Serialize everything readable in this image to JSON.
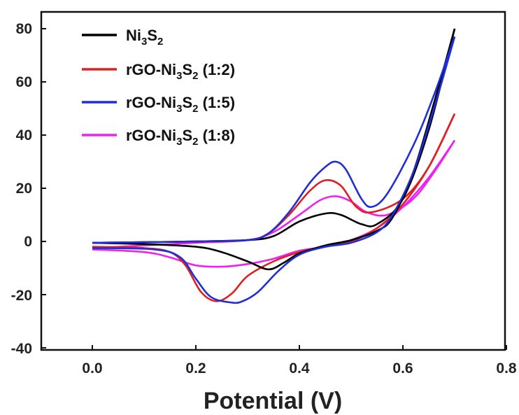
{
  "chart_data": {
    "type": "line",
    "title": "",
    "xlabel": "Potential (V)",
    "ylabel": "",
    "xlim": [
      -0.1,
      0.8
    ],
    "ylim": [
      -40,
      85
    ],
    "x_ticks": [
      "0.0",
      "0.2",
      "0.4",
      "0.6",
      "0.8"
    ],
    "y_ticks": [
      "-40",
      "-20",
      "0",
      "20",
      "40",
      "60",
      "80"
    ],
    "grid": false,
    "legend_position": "top-left",
    "series": [
      {
        "name": "Ni3S2",
        "legend": {
          "base": "Ni",
          "sub1": "3",
          "mid": "S",
          "sub2": "2",
          "tail": ""
        },
        "color": "#000000",
        "anodic": [
          [
            0.0,
            -0.5
          ],
          [
            0.1,
            -0.3
          ],
          [
            0.2,
            0.0
          ],
          [
            0.3,
            0.5
          ],
          [
            0.35,
            2.0
          ],
          [
            0.4,
            7.5
          ],
          [
            0.45,
            10.5
          ],
          [
            0.48,
            10.0
          ],
          [
            0.52,
            6.5
          ],
          [
            0.55,
            6.5
          ],
          [
            0.6,
            16.0
          ],
          [
            0.65,
            42.0
          ],
          [
            0.7,
            80.0
          ]
        ],
        "cathodic": [
          [
            0.7,
            80.0
          ],
          [
            0.66,
            52.0
          ],
          [
            0.62,
            26.0
          ],
          [
            0.58,
            9.0
          ],
          [
            0.55,
            4.0
          ],
          [
            0.5,
            0.5
          ],
          [
            0.45,
            -1.5
          ],
          [
            0.4,
            -4.5
          ],
          [
            0.37,
            -8.0
          ],
          [
            0.34,
            -10.5
          ],
          [
            0.3,
            -7.5
          ],
          [
            0.25,
            -4.0
          ],
          [
            0.2,
            -2.0
          ],
          [
            0.1,
            -1.0
          ],
          [
            0.0,
            -0.5
          ]
        ]
      },
      {
        "name": "rGO-Ni3S2 (1:2)",
        "legend": {
          "base": "rGO-Ni",
          "sub1": "3",
          "mid": "S",
          "sub2": "2",
          "tail": " (1:2)"
        },
        "color": "#e02020",
        "anodic": [
          [
            0.0,
            -0.5
          ],
          [
            0.1,
            -0.3
          ],
          [
            0.2,
            0.0
          ],
          [
            0.3,
            0.5
          ],
          [
            0.34,
            3.0
          ],
          [
            0.38,
            10.0
          ],
          [
            0.42,
            19.0
          ],
          [
            0.45,
            23.0
          ],
          [
            0.48,
            21.0
          ],
          [
            0.51,
            13.0
          ],
          [
            0.54,
            11.0
          ],
          [
            0.6,
            16.0
          ],
          [
            0.65,
            28.0
          ],
          [
            0.7,
            48.0
          ]
        ],
        "cathodic": [
          [
            0.7,
            48.0
          ],
          [
            0.65,
            28.0
          ],
          [
            0.6,
            14.0
          ],
          [
            0.55,
            5.0
          ],
          [
            0.5,
            0.0
          ],
          [
            0.45,
            -2.0
          ],
          [
            0.4,
            -4.0
          ],
          [
            0.35,
            -7.5
          ],
          [
            0.3,
            -13.0
          ],
          [
            0.27,
            -19.5
          ],
          [
            0.24,
            -22.5
          ],
          [
            0.21,
            -19.0
          ],
          [
            0.18,
            -9.0
          ],
          [
            0.15,
            -4.0
          ],
          [
            0.1,
            -2.5
          ],
          [
            0.0,
            -2.0
          ]
        ]
      },
      {
        "name": "rGO-Ni3S2 (1:5)",
        "legend": {
          "base": "rGO-Ni",
          "sub1": "3",
          "mid": "S",
          "sub2": "2",
          "tail": " (1:5)"
        },
        "color": "#1f2fd6",
        "anodic": [
          [
            0.0,
            -0.5
          ],
          [
            0.1,
            -0.3
          ],
          [
            0.2,
            0.0
          ],
          [
            0.3,
            0.5
          ],
          [
            0.34,
            3.0
          ],
          [
            0.38,
            11.0
          ],
          [
            0.42,
            22.0
          ],
          [
            0.45,
            28.0
          ],
          [
            0.47,
            30.0
          ],
          [
            0.49,
            27.0
          ],
          [
            0.52,
            16.0
          ],
          [
            0.54,
            13.0
          ],
          [
            0.57,
            18.0
          ],
          [
            0.62,
            36.0
          ],
          [
            0.66,
            55.0
          ],
          [
            0.7,
            77.0
          ]
        ],
        "cathodic": [
          [
            0.7,
            77.0
          ],
          [
            0.66,
            50.0
          ],
          [
            0.62,
            26.0
          ],
          [
            0.58,
            10.0
          ],
          [
            0.55,
            3.5
          ],
          [
            0.5,
            -0.5
          ],
          [
            0.45,
            -2.0
          ],
          [
            0.4,
            -5.0
          ],
          [
            0.36,
            -11.0
          ],
          [
            0.32,
            -19.0
          ],
          [
            0.29,
            -22.5
          ],
          [
            0.27,
            -23.0
          ],
          [
            0.23,
            -21.0
          ],
          [
            0.2,
            -14.0
          ],
          [
            0.17,
            -6.0
          ],
          [
            0.12,
            -3.0
          ],
          [
            0.0,
            -2.5
          ]
        ]
      },
      {
        "name": "rGO-Ni3S2 (1:8)",
        "legend": {
          "base": "rGO-Ni",
          "sub1": "3",
          "mid": "S",
          "sub2": "2",
          "tail": " (1:8)"
        },
        "color": "#ee22ee",
        "anodic": [
          [
            0.0,
            -2.5
          ],
          [
            0.1,
            -1.5
          ],
          [
            0.2,
            -0.5
          ],
          [
            0.3,
            0.5
          ],
          [
            0.35,
            3.5
          ],
          [
            0.4,
            10.0
          ],
          [
            0.44,
            15.5
          ],
          [
            0.47,
            17.0
          ],
          [
            0.5,
            15.0
          ],
          [
            0.53,
            11.0
          ],
          [
            0.57,
            10.0
          ],
          [
            0.62,
            16.0
          ],
          [
            0.66,
            26.0
          ],
          [
            0.7,
            38.0
          ]
        ],
        "cathodic": [
          [
            0.7,
            38.0
          ],
          [
            0.65,
            24.0
          ],
          [
            0.6,
            13.0
          ],
          [
            0.55,
            5.0
          ],
          [
            0.5,
            0.5
          ],
          [
            0.45,
            -2.0
          ],
          [
            0.4,
            -3.5
          ],
          [
            0.35,
            -6.5
          ],
          [
            0.3,
            -8.5
          ],
          [
            0.25,
            -9.5
          ],
          [
            0.2,
            -9.0
          ],
          [
            0.15,
            -6.0
          ],
          [
            0.1,
            -4.0
          ],
          [
            0.0,
            -3.0
          ]
        ]
      }
    ]
  }
}
